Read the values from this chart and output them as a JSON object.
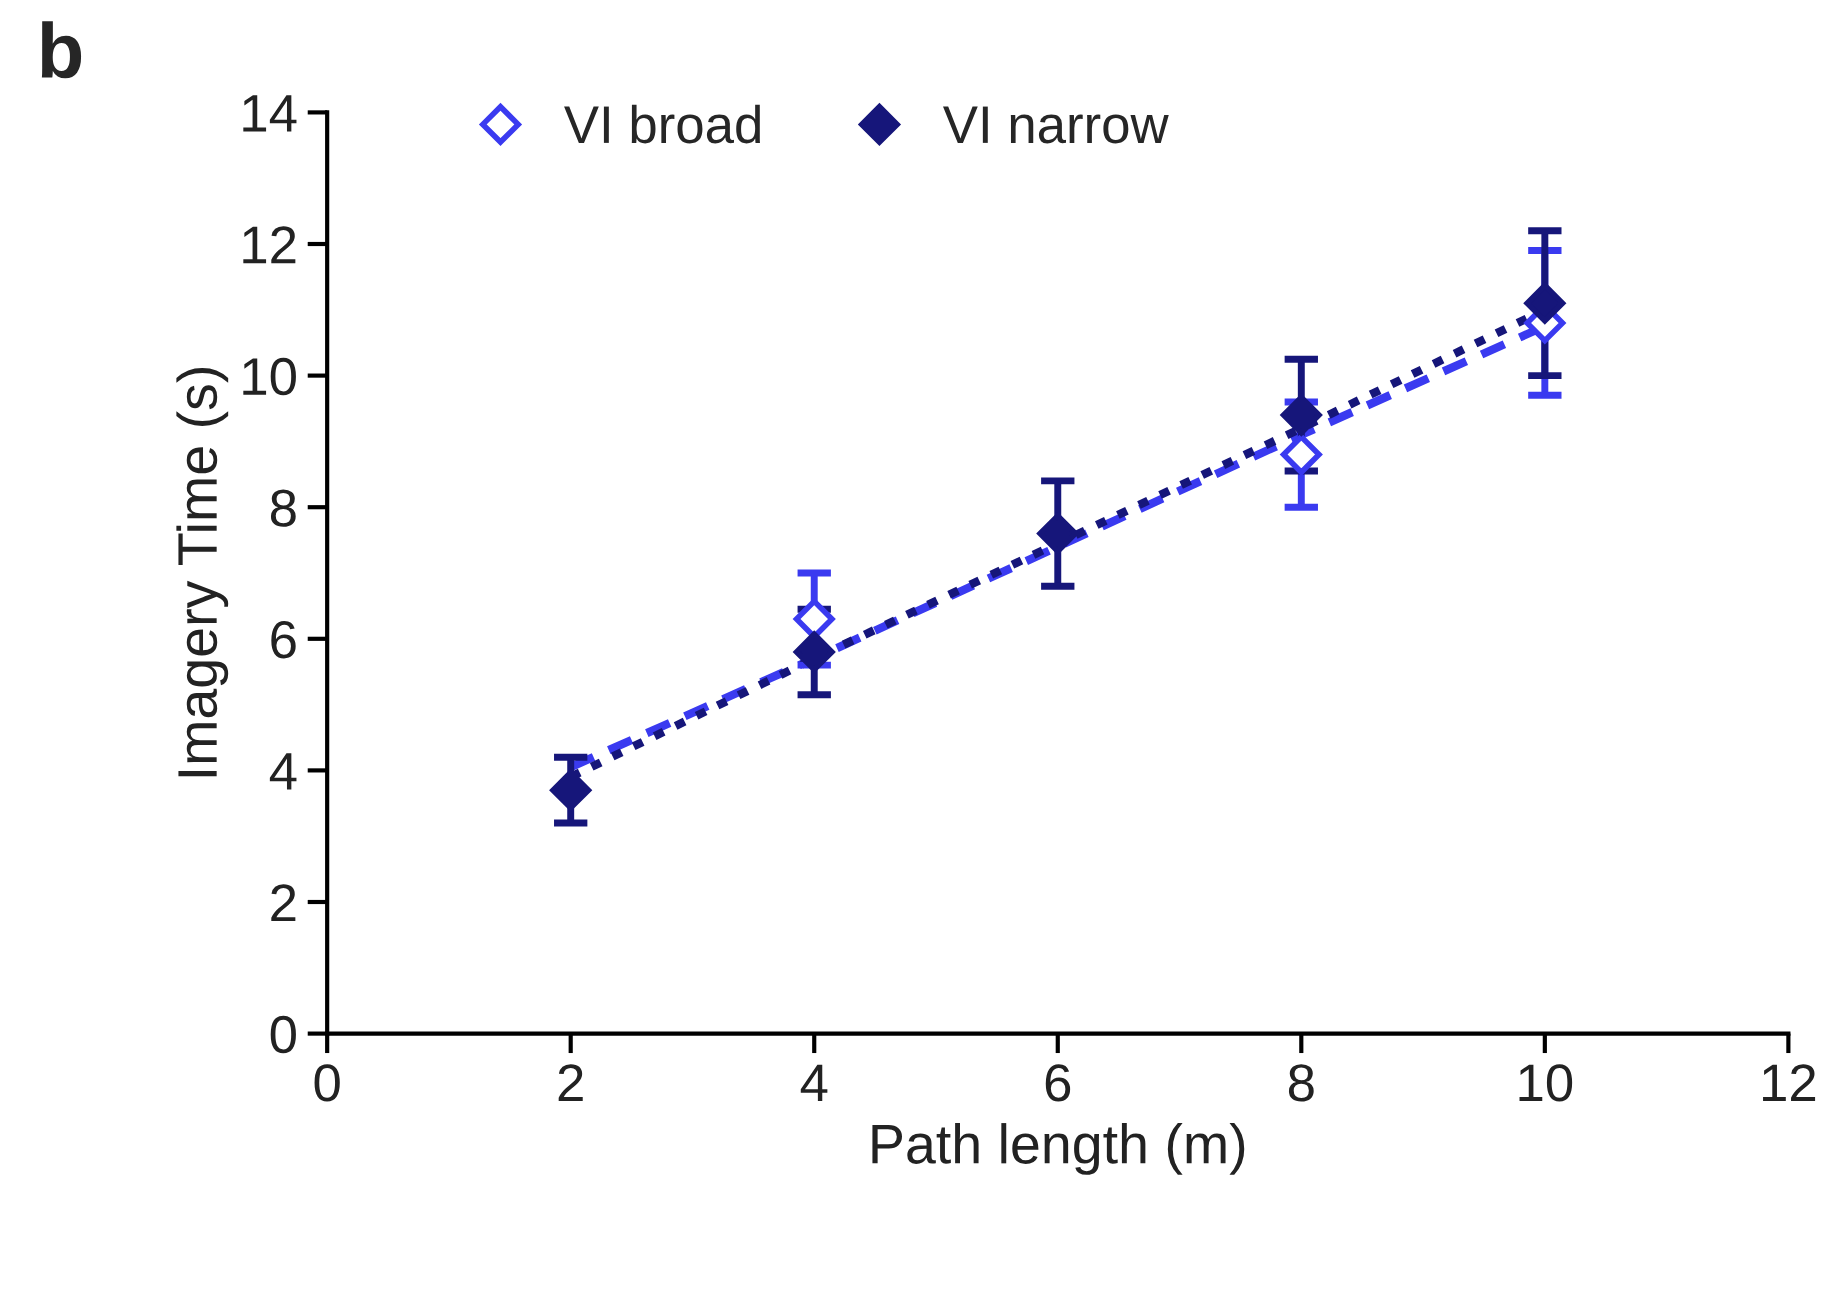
{
  "chart_data": {
    "type": "scatter",
    "xlabel": "Path length (m)",
    "ylabel": "Imagery Time (s)",
    "annotations": [
      "b"
    ],
    "x": [
      2,
      4,
      6,
      8,
      10
    ],
    "series": [
      {
        "name": "VI broad",
        "color": "#3a3af0",
        "marker": "diamond",
        "values": [
          null,
          6.3,
          null,
          8.8,
          10.8
        ],
        "errors": [
          null,
          0.7,
          null,
          0.8,
          1.1
        ]
      },
      {
        "name": "VI narrow",
        "color": "#16167a",
        "marker": "diamond",
        "values": [
          3.7,
          5.8,
          7.6,
          9.4,
          11.1
        ],
        "errors": [
          0.5,
          0.65,
          0.8,
          0.85,
          1.1
        ]
      },
      {
        "type": "line",
        "color": "#3a3af0",
        "line_style": "dashed",
        "values": [
          4.05,
          5.7,
          7.4,
          9.1,
          10.75
        ]
      },
      {
        "type": "line",
        "color": "#16167a",
        "line_style": "dotted",
        "values": [
          3.9,
          5.7,
          7.45,
          9.2,
          11.0
        ]
      }
    ],
    "xlim": [
      0,
      12
    ],
    "xticks": [
      0,
      2,
      4,
      6,
      8,
      10,
      12
    ],
    "ylim": [
      0,
      14
    ],
    "yticks": [
      0,
      2,
      4,
      6,
      8,
      10,
      12,
      14
    ],
    "grid": false,
    "legend": "top left"
  }
}
